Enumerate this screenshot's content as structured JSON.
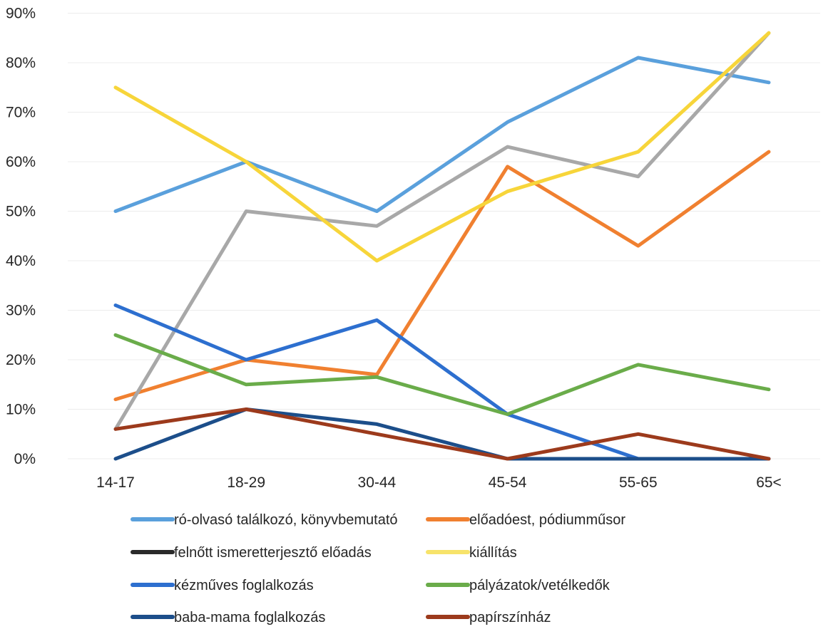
{
  "chart_data": {
    "type": "line",
    "categories": [
      "14-17",
      "18-29",
      "30-44",
      "45-54",
      "55-65",
      "65<"
    ],
    "y_ticks": [
      "0%",
      "10%",
      "20%",
      "30%",
      "40%",
      "50%",
      "60%",
      "70%",
      "80%",
      "90%"
    ],
    "ylim": [
      0,
      90
    ],
    "grid": true,
    "legend_position": "bottom",
    "series": [
      {
        "name": "ró-olvasó találkozó, könyvbemutató",
        "color": "#5aa0dc",
        "values": [
          50,
          60,
          50,
          68,
          81,
          76
        ]
      },
      {
        "name": "előadóest, pódiumműsor",
        "color": "#f08030",
        "values": [
          12,
          20,
          17,
          59,
          43,
          62
        ]
      },
      {
        "name": "felnőtt ismeretterjesztő előadás",
        "color": "#a8a8a8",
        "values": [
          6,
          50,
          47,
          63,
          57,
          86
        ]
      },
      {
        "name": "kiállítás",
        "color": "#f7d53a",
        "values": [
          75,
          60,
          40,
          54,
          62,
          86
        ]
      },
      {
        "name": "kézműves foglalkozás",
        "color": "#2d6fcf",
        "values": [
          31,
          20,
          28,
          9,
          0,
          0
        ]
      },
      {
        "name": "pályázatok/vetélkedők",
        "color": "#6aac4a",
        "values": [
          25,
          15,
          16.5,
          9,
          19,
          14
        ]
      },
      {
        "name": "baba-mama foglalkozás",
        "color": "#1c4e8a",
        "values": [
          0,
          10,
          7,
          0,
          0,
          0
        ]
      },
      {
        "name": "papírszínház",
        "color": "#9c3a1c",
        "values": [
          6,
          10,
          5,
          0,
          5,
          0
        ]
      }
    ],
    "legend": [
      {
        "label": "ró-olvasó találkozó, könyvbemutató",
        "color": "#5aa0dc"
      },
      {
        "label": "előadóest, pódiumműsor",
        "color": "#f08030"
      },
      {
        "label": "felnőtt ismeretterjesztő előadás",
        "color": "#2a2a2a"
      },
      {
        "label": "kiállítás",
        "color": "#f7e36a"
      },
      {
        "label": "kézműves foglalkozás",
        "color": "#2d6fcf"
      },
      {
        "label": "pályázatok/vetélkedők",
        "color": "#6aac4a"
      },
      {
        "label": "baba-mama foglalkozás",
        "color": "#1c4e8a"
      },
      {
        "label": "papírszínház",
        "color": "#9c3a1c"
      }
    ]
  }
}
